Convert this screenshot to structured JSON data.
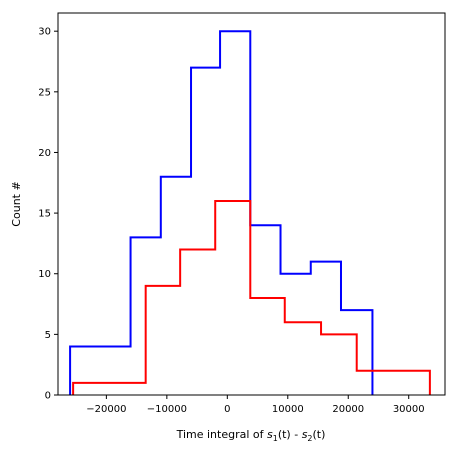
{
  "chart_data": {
    "type": "histogram",
    "xlabel_parts": {
      "prefix": "Time integral of ",
      "s1_base": "s",
      "s1_sub": "1",
      "middle": "(t) - ",
      "s2_base": "s",
      "s2_sub": "2",
      "suffix": "(t)"
    },
    "ylabel": "Count #",
    "xlim": [
      -28000,
      36000
    ],
    "ylim": [
      0,
      31.5
    ],
    "x_ticks": [
      -20000,
      -10000,
      0,
      10000,
      20000,
      30000
    ],
    "x_tick_labels": [
      "−20000",
      "−10000",
      "0",
      "10000",
      "20000",
      "30000"
    ],
    "y_ticks": [
      0,
      5,
      10,
      15,
      20,
      25,
      30
    ],
    "y_tick_labels": [
      "0",
      "5",
      "10",
      "15",
      "20",
      "25",
      "30"
    ],
    "grid": false,
    "series": [
      {
        "color": "#0000ff",
        "bin_edges": [
          -26000,
          -16000,
          -11000,
          -6000,
          -1200,
          3800,
          8800,
          13800,
          18800,
          24000
        ],
        "counts": [
          4,
          13,
          18,
          27,
          30,
          14,
          10,
          11,
          7
        ]
      },
      {
        "color": "#ff0000",
        "bin_edges": [
          -25500,
          -13500,
          -7800,
          -2000,
          3800,
          9500,
          15500,
          21400,
          33500
        ],
        "counts": [
          1,
          9,
          12,
          16,
          8,
          6,
          5,
          2
        ]
      }
    ]
  }
}
